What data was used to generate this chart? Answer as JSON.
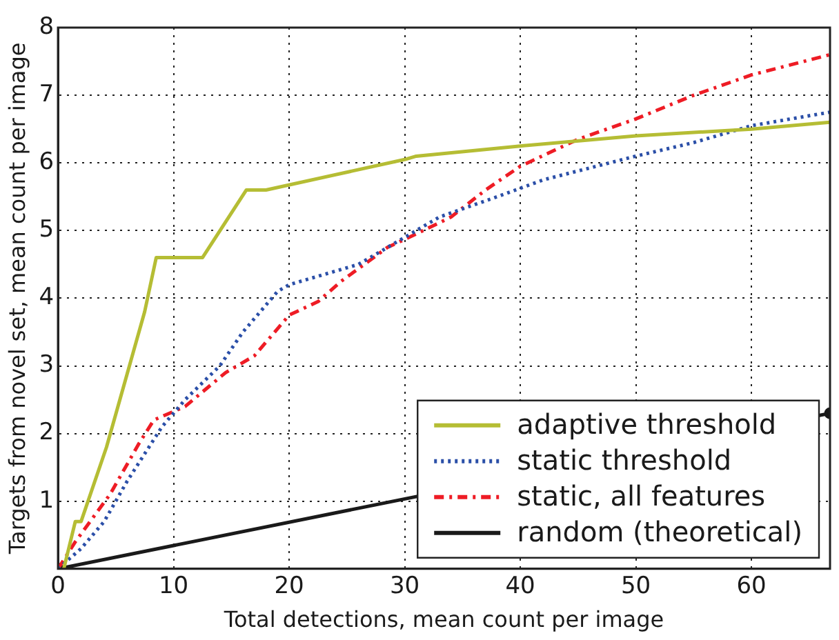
{
  "chart_data": {
    "type": "line",
    "xlabel": "Total detections, mean count per image",
    "ylabel": "Targets from novel set, mean count per image",
    "xlim": [
      0,
      66.8
    ],
    "xticks": [
      0,
      10,
      20,
      30,
      40,
      50,
      60
    ],
    "ylim": [
      0,
      8
    ],
    "yticks": [
      1,
      2,
      3,
      4,
      5,
      6,
      7,
      8
    ],
    "grid": true,
    "legend": "bottom right",
    "series": [
      {
        "name": "adaptive threshold",
        "color": "#b5bd34",
        "line_style": "solid",
        "marker": "none",
        "x": [
          0.5,
          1.5,
          2,
          4.2,
          7.5,
          8.5,
          12.5,
          16.3,
          18,
          30,
          31,
          40,
          50,
          60,
          66.8
        ],
        "values": [
          0,
          0.7,
          0.7,
          1.8,
          3.8,
          4.6,
          4.6,
          5.6,
          5.6,
          6.05,
          6.1,
          6.25,
          6.4,
          6.5,
          6.6
        ]
      },
      {
        "name": "static threshold",
        "color": "#2b4fa8",
        "line_style": "dotted",
        "marker": "none",
        "x": [
          0,
          2,
          4,
          6,
          9,
          11,
          14,
          16,
          19,
          20,
          26,
          30,
          33,
          38,
          42,
          50,
          55,
          60,
          66.8
        ],
        "values": [
          0,
          0.3,
          0.7,
          1.3,
          2.1,
          2.5,
          3.0,
          3.5,
          4.1,
          4.2,
          4.5,
          4.9,
          5.2,
          5.5,
          5.75,
          6.1,
          6.3,
          6.55,
          6.75
        ]
      },
      {
        "name": "static, all features",
        "color": "#ee1c25",
        "line_style": "dashed",
        "marker": "none",
        "x": [
          0,
          1.5,
          3,
          4.5,
          7,
          8.3,
          11,
          14.5,
          17,
          18.5,
          20,
          22.5,
          24.5,
          26.5,
          28.5,
          31,
          34,
          37,
          40,
          45,
          50,
          55,
          60,
          66.8
        ],
        "values": [
          0,
          0.4,
          0.75,
          1.1,
          1.85,
          2.2,
          2.4,
          2.9,
          3.15,
          3.45,
          3.75,
          3.95,
          4.25,
          4.5,
          4.75,
          4.95,
          5.2,
          5.6,
          5.95,
          6.35,
          6.65,
          7.0,
          7.3,
          7.6
        ]
      },
      {
        "name": "random (theoretical)",
        "color": "#1a1a1a",
        "line_style": "solid",
        "marker": "circle",
        "x": [
          0,
          66.8
        ],
        "values": [
          0,
          2.3
        ]
      }
    ]
  }
}
